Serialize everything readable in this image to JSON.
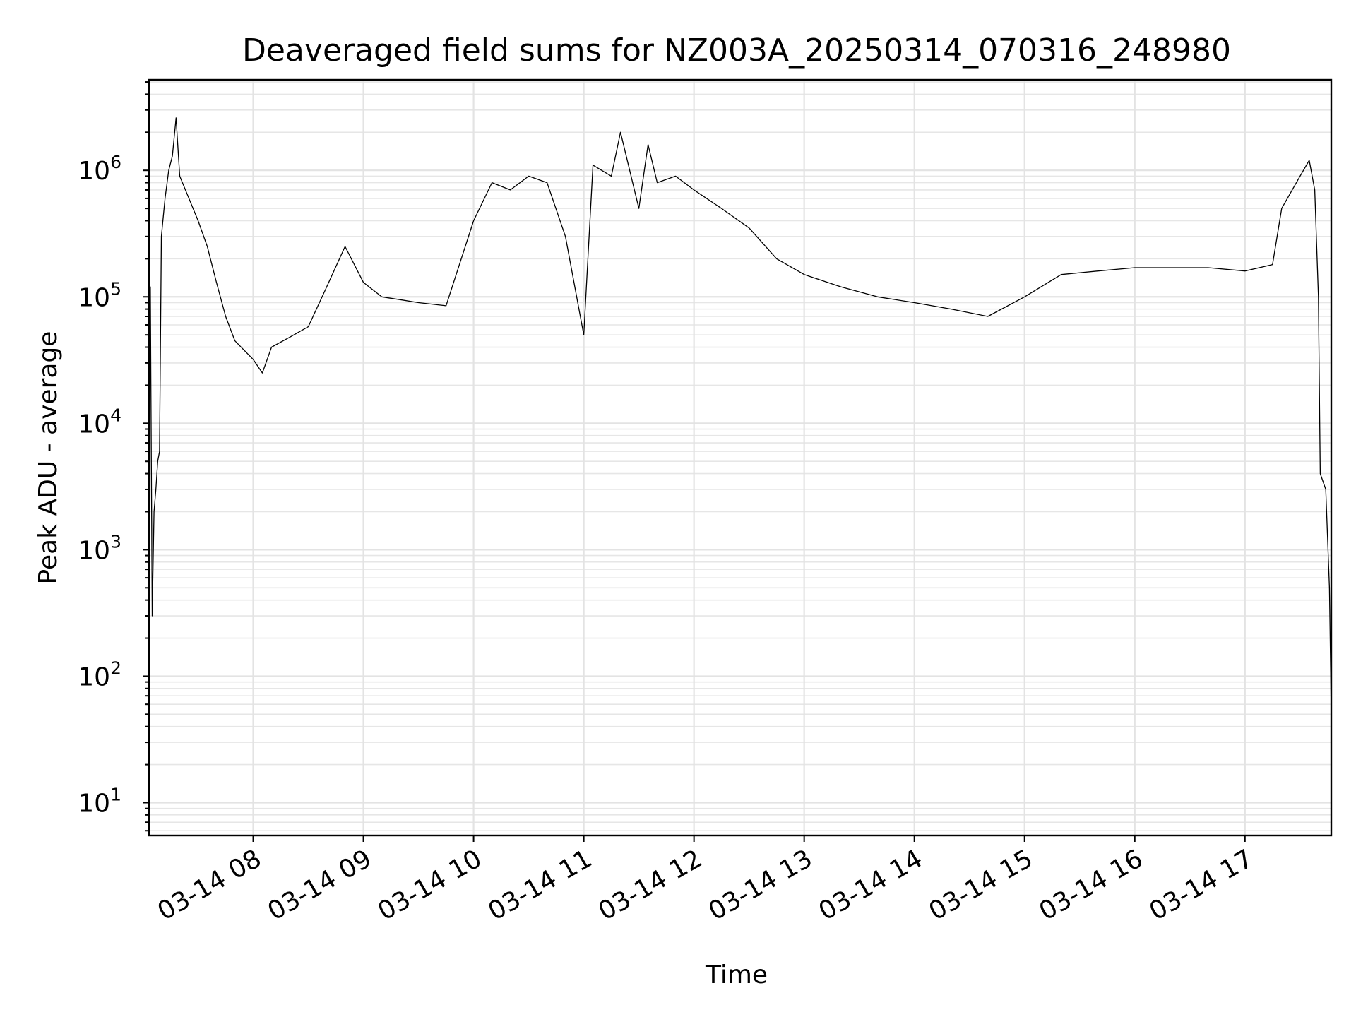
{
  "chart_data": {
    "type": "line",
    "title": "Deaveraged field sums for NZ003A_20250314_070316_248980",
    "xlabel": "Time",
    "ylabel": "Peak ADU - average",
    "yscale": "log",
    "ylim": [
      5.5,
      5200000
    ],
    "xlim": [
      "2025-03-14 07:03:16",
      "2025-03-14 17:47:00"
    ],
    "grid": true,
    "line_color": "#000000",
    "x_ticks": [
      {
        "label": "03-14 08",
        "time": "2025-03-14 08:00"
      },
      {
        "label": "03-14 09",
        "time": "2025-03-14 09:00"
      },
      {
        "label": "03-14 10",
        "time": "2025-03-14 10:00"
      },
      {
        "label": "03-14 11",
        "time": "2025-03-14 11:00"
      },
      {
        "label": "03-14 12",
        "time": "2025-03-14 12:00"
      },
      {
        "label": "03-14 13",
        "time": "2025-03-14 13:00"
      },
      {
        "label": "03-14 14",
        "time": "2025-03-14 14:00"
      },
      {
        "label": "03-14 15",
        "time": "2025-03-14 15:00"
      },
      {
        "label": "03-14 16",
        "time": "2025-03-14 16:00"
      },
      {
        "label": "03-14 17",
        "time": "2025-03-14 17:00"
      }
    ],
    "y_ticks": [
      {
        "base": "10",
        "exp": "1",
        "value": 10
      },
      {
        "base": "10",
        "exp": "2",
        "value": 100
      },
      {
        "base": "10",
        "exp": "3",
        "value": 1000
      },
      {
        "base": "10",
        "exp": "4",
        "value": 10000
      },
      {
        "base": "10",
        "exp": "5",
        "value": 100000
      },
      {
        "base": "10",
        "exp": "6",
        "value": 1000000
      }
    ],
    "series": [
      {
        "values": [
          [
            "2025-03-14 07:03",
            1000
          ],
          [
            "2025-03-14 07:04",
            120000
          ],
          [
            "2025-03-14 07:05",
            300
          ],
          [
            "2025-03-14 07:06",
            2000
          ],
          [
            "2025-03-14 07:07",
            3000
          ],
          [
            "2025-03-14 07:08",
            5000
          ],
          [
            "2025-03-14 07:09",
            6000
          ],
          [
            "2025-03-14 07:10",
            300000
          ],
          [
            "2025-03-14 07:12",
            600000
          ],
          [
            "2025-03-14 07:14",
            1000000
          ],
          [
            "2025-03-14 07:16",
            1300000
          ],
          [
            "2025-03-14 07:18",
            2600000
          ],
          [
            "2025-03-14 07:20",
            900000
          ],
          [
            "2025-03-14 07:25",
            600000
          ],
          [
            "2025-03-14 07:30",
            400000
          ],
          [
            "2025-03-14 07:35",
            250000
          ],
          [
            "2025-03-14 07:40",
            130000
          ],
          [
            "2025-03-14 07:45",
            70000
          ],
          [
            "2025-03-14 07:50",
            45000
          ],
          [
            "2025-03-14 08:00",
            32000
          ],
          [
            "2025-03-14 08:05",
            25000
          ],
          [
            "2025-03-14 08:10",
            40000
          ],
          [
            "2025-03-14 08:20",
            48000
          ],
          [
            "2025-03-14 08:30",
            58000
          ],
          [
            "2025-03-14 08:40",
            120000
          ],
          [
            "2025-03-14 08:50",
            250000
          ],
          [
            "2025-03-14 09:00",
            130000
          ],
          [
            "2025-03-14 09:10",
            100000
          ],
          [
            "2025-03-14 09:20",
            95000
          ],
          [
            "2025-03-14 09:30",
            90000
          ],
          [
            "2025-03-14 09:45",
            85000
          ],
          [
            "2025-03-14 10:00",
            400000
          ],
          [
            "2025-03-14 10:10",
            800000
          ],
          [
            "2025-03-14 10:20",
            700000
          ],
          [
            "2025-03-14 10:30",
            900000
          ],
          [
            "2025-03-14 10:40",
            800000
          ],
          [
            "2025-03-14 10:50",
            300000
          ],
          [
            "2025-03-14 11:00",
            50000
          ],
          [
            "2025-03-14 11:05",
            1100000
          ],
          [
            "2025-03-14 11:15",
            900000
          ],
          [
            "2025-03-14 11:20",
            2000000
          ],
          [
            "2025-03-14 11:30",
            500000
          ],
          [
            "2025-03-14 11:35",
            1600000
          ],
          [
            "2025-03-14 11:40",
            800000
          ],
          [
            "2025-03-14 11:50",
            900000
          ],
          [
            "2025-03-14 12:00",
            700000
          ],
          [
            "2025-03-14 12:15",
            500000
          ],
          [
            "2025-03-14 12:30",
            350000
          ],
          [
            "2025-03-14 12:45",
            200000
          ],
          [
            "2025-03-14 13:00",
            150000
          ],
          [
            "2025-03-14 13:20",
            120000
          ],
          [
            "2025-03-14 13:40",
            100000
          ],
          [
            "2025-03-14 14:00",
            90000
          ],
          [
            "2025-03-14 14:20",
            80000
          ],
          [
            "2025-03-14 14:40",
            70000
          ],
          [
            "2025-03-14 15:00",
            100000
          ],
          [
            "2025-03-14 15:20",
            150000
          ],
          [
            "2025-03-14 15:40",
            160000
          ],
          [
            "2025-03-14 16:00",
            170000
          ],
          [
            "2025-03-14 16:20",
            170000
          ],
          [
            "2025-03-14 16:40",
            170000
          ],
          [
            "2025-03-14 17:00",
            160000
          ],
          [
            "2025-03-14 17:15",
            180000
          ],
          [
            "2025-03-14 17:20",
            500000
          ],
          [
            "2025-03-14 17:30",
            900000
          ],
          [
            "2025-03-14 17:35",
            1200000
          ],
          [
            "2025-03-14 17:38",
            700000
          ],
          [
            "2025-03-14 17:40",
            100000
          ],
          [
            "2025-03-14 17:41",
            4000
          ],
          [
            "2025-03-14 17:44",
            3000
          ],
          [
            "2025-03-14 17:46",
            500
          ],
          [
            "2025-03-14 17:47",
            50
          ]
        ]
      }
    ]
  }
}
